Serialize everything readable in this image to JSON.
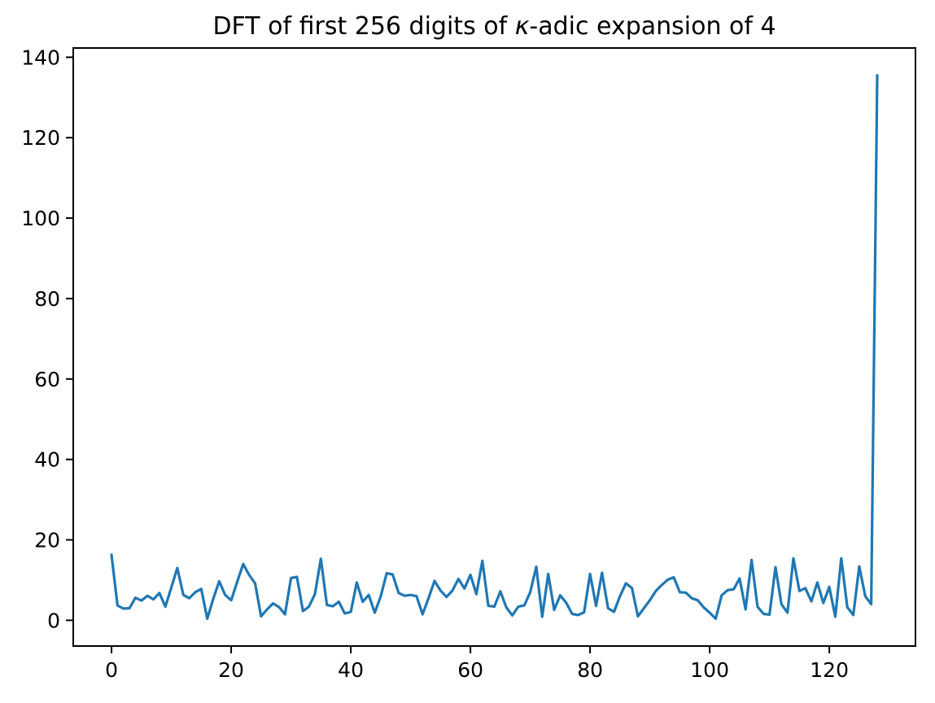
{
  "figure": {
    "title_prefix": "DFT of first 256 digits of ",
    "title_kappa": "κ",
    "title_suffix": "-adic expansion of 4",
    "background_color": "#ffffff",
    "spine_color": "#000000",
    "tick_label_color": "#000000"
  },
  "chart_data": {
    "type": "line",
    "title": "DFT of first 256 digits of κ-adic expansion of 4",
    "xlabel": "",
    "ylabel": "",
    "legend": null,
    "grid": false,
    "line_color": "#1f77b4",
    "x_ticks": [
      0,
      20,
      40,
      60,
      80,
      100,
      120
    ],
    "y_ticks": [
      0,
      20,
      40,
      60,
      80,
      100,
      120,
      140
    ],
    "xlim": [
      -6.4,
      134.4
    ],
    "ylim": [
      -6.4,
      142.3
    ],
    "x_start": 0,
    "x_step": 1,
    "num_points": 129,
    "values": [
      16.3,
      3.7,
      2.9,
      3.0,
      5.6,
      4.9,
      6.1,
      5.2,
      6.8,
      3.4,
      8.2,
      13.0,
      6.3,
      5.5,
      7.0,
      7.8,
      0.4,
      5.3,
      9.7,
      6.3,
      5.0,
      9.5,
      14.0,
      11.3,
      9.2,
      1.0,
      2.7,
      4.2,
      3.3,
      1.5,
      10.5,
      10.8,
      2.3,
      3.4,
      6.5,
      15.3,
      3.8,
      3.5,
      4.6,
      1.7,
      2.1,
      9.4,
      4.6,
      6.3,
      1.9,
      5.9,
      11.7,
      11.4,
      6.8,
      6.1,
      6.3,
      6.0,
      1.5,
      5.5,
      9.8,
      7.4,
      5.8,
      7.4,
      10.3,
      7.9,
      11.3,
      6.5,
      14.8,
      3.6,
      3.4,
      7.2,
      3.2,
      1.2,
      3.4,
      3.7,
      7.0,
      13.3,
      0.9,
      11.5,
      2.6,
      6.2,
      4.4,
      1.6,
      1.3,
      2.0,
      11.5,
      3.6,
      11.8,
      3.0,
      2.1,
      6.0,
      9.2,
      8.0,
      1.0,
      3.0,
      5.0,
      7.3,
      8.8,
      10.1,
      10.7,
      7.0,
      6.9,
      5.5,
      5.0,
      3.2,
      1.9,
      0.4,
      6.2,
      7.5,
      7.7,
      10.4,
      2.7,
      15.0,
      3.4,
      1.6,
      1.4,
      13.2,
      4.0,
      1.9,
      15.4,
      7.3,
      8.0,
      4.7,
      9.4,
      4.3,
      8.3,
      0.9,
      15.4,
      3.3,
      1.3,
      13.4,
      6.0,
      4.0,
      135.5
    ]
  }
}
